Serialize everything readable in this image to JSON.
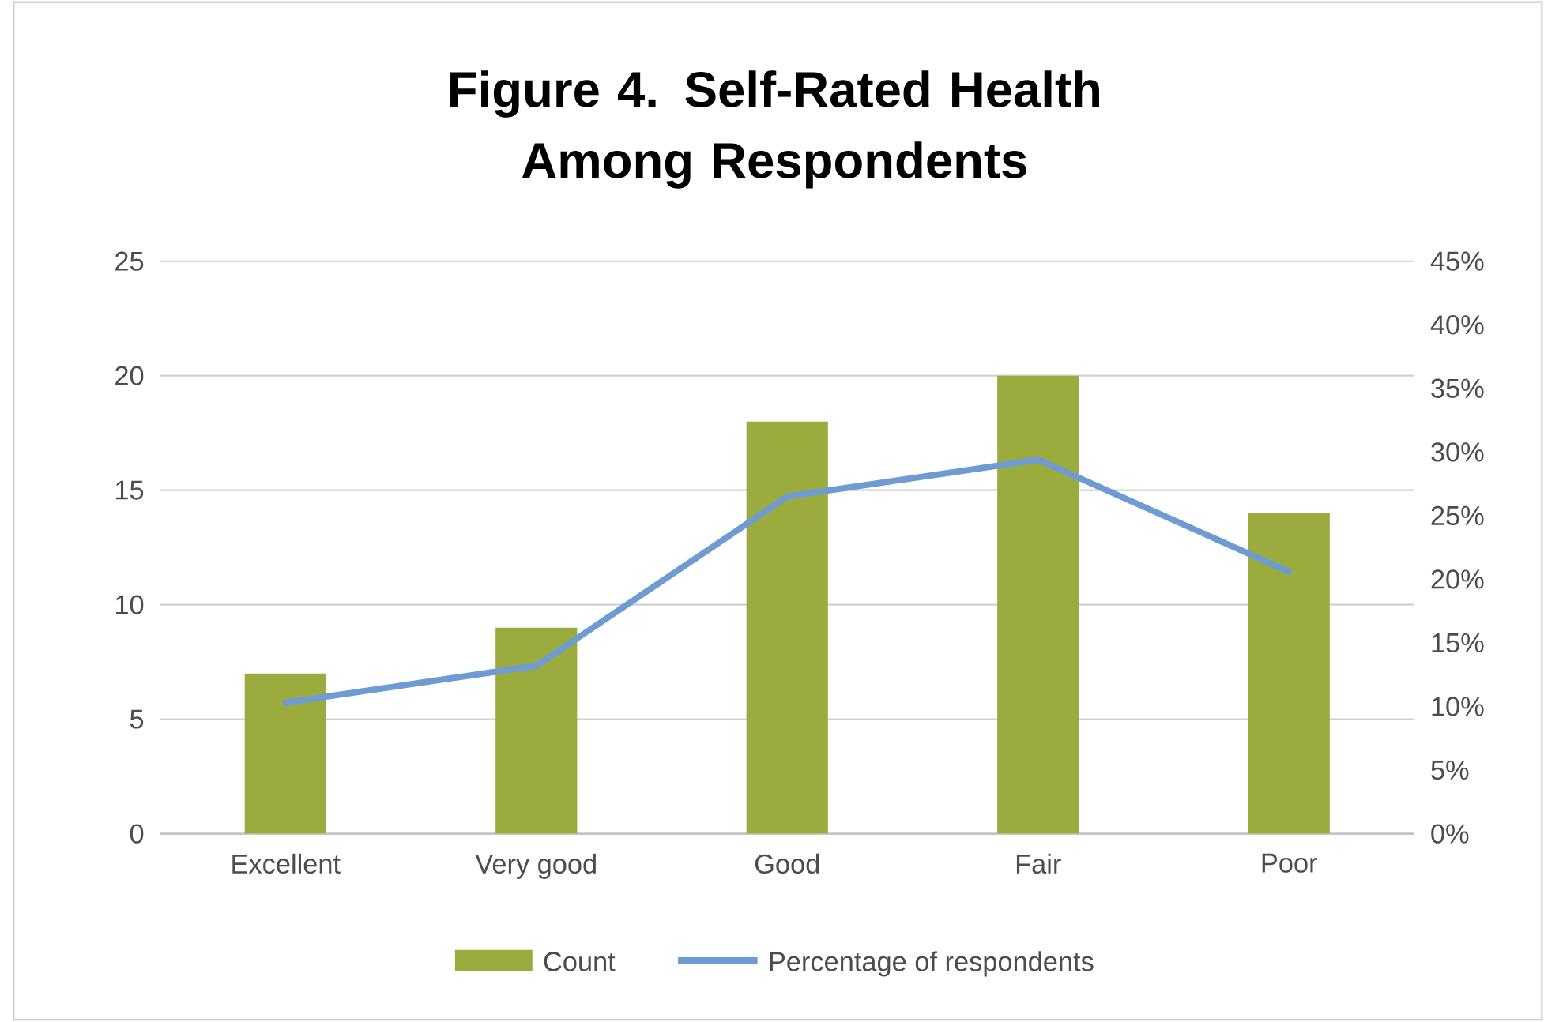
{
  "chart_data": {
    "type": "bar",
    "title": "Figure 4. Self-Rated Health Among Respondents",
    "categories": [
      "Excellent",
      "Very good",
      "Good",
      "Fair",
      "Poor"
    ],
    "series": [
      {
        "name": "Count",
        "color": "#9bab3d",
        "values": [
          7,
          9,
          18,
          20,
          14
        ]
      },
      {
        "name": "Percentage of respondents",
        "type": "line",
        "axis": "y2",
        "color": "#6f9bd3",
        "values": [
          10.3,
          13.2,
          26.5,
          29.4,
          20.6
        ]
      }
    ],
    "ylim": [
      0,
      25
    ],
    "yticks": [
      0,
      5,
      10,
      15,
      20,
      25
    ],
    "y2lim": [
      0,
      45
    ],
    "y2ticks": [
      {
        "value": 0,
        "label": "0%"
      },
      {
        "value": 5,
        "label": "5%"
      },
      {
        "value": 10,
        "label": "10%"
      },
      {
        "value": 15,
        "label": "15%"
      },
      {
        "value": 20,
        "label": "20%"
      },
      {
        "value": 25,
        "label": "25%"
      },
      {
        "value": 30,
        "label": "30%"
      },
      {
        "value": 35,
        "label": "35%"
      },
      {
        "value": 40,
        "label": "40%"
      },
      {
        "value": 45,
        "label": "45%"
      }
    ],
    "grid": "y",
    "legend": "bottom",
    "marker": "none"
  }
}
